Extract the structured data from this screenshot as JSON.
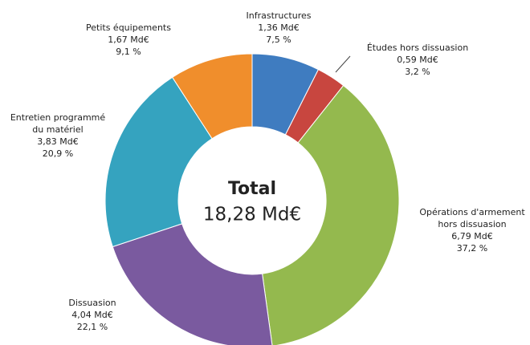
{
  "chart_data": {
    "type": "donut",
    "center_title": "Total",
    "center_label": "18,28 Md€",
    "categories": [
      [
        "Infrastructures"
      ],
      [
        "Études hors dissuasion"
      ],
      [
        "Opérations d'armement",
        "hors dissuasion"
      ],
      [
        "Dissuasion"
      ],
      [
        "Entretien programmé",
        "du matériel"
      ],
      [
        "Petits équipements"
      ]
    ],
    "values": [
      1.36,
      0.59,
      6.79,
      4.04,
      3.83,
      1.67
    ],
    "value_labels": [
      "1,36 Md€",
      "0,59 Md€",
      "6,79 Md€",
      "4,04 Md€",
      "3,83 Md€",
      "1,67 Md€"
    ],
    "percents": [
      7.5,
      3.2,
      37.2,
      22.1,
      20.9,
      9.1
    ],
    "percent_labels": [
      "7,5 %",
      "3,2 %",
      "37,2 %",
      "22,1 %",
      "20,9 %",
      "9,1 %"
    ],
    "colors": [
      "#3f7cc0",
      "#c8463f",
      "#94b94e",
      "#7a5a9f",
      "#35a3bf",
      "#f08e2c"
    ]
  }
}
